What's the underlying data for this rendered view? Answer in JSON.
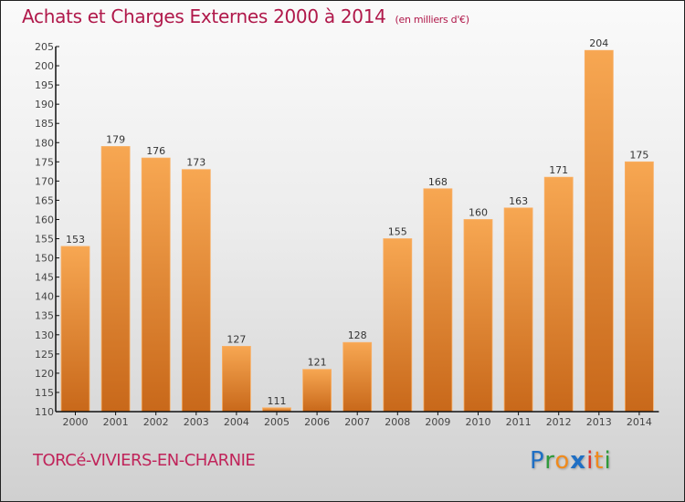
{
  "header": {
    "title": "Achats et Charges Externes 2000 à 2014",
    "unit": "(en milliers d'€)"
  },
  "footer": {
    "town": "TORCé-VIVIERS-EN-CHARNIE",
    "logo": {
      "letters": [
        {
          "ch": "P",
          "color": "#1f6fc4"
        },
        {
          "ch": "r",
          "color": "#2e9a3a"
        },
        {
          "ch": "o",
          "color": "#f08a1c"
        },
        {
          "ch": "x",
          "color": "#1f6fc4"
        },
        {
          "ch": "i",
          "color": "#e0322a"
        },
        {
          "ch": "t",
          "color": "#f08a1c"
        },
        {
          "ch": "i",
          "color": "#2e9a3a"
        }
      ]
    }
  },
  "colors": {
    "bar_top": "#f7a752",
    "bar_bottom": "#c8681a",
    "title": "#b0184a"
  },
  "chart_data": {
    "type": "bar",
    "title": "Achats et Charges Externes 2000 à 2014",
    "subtitle": "(en milliers d'€)",
    "xlabel": "",
    "ylabel": "",
    "categories": [
      "2000",
      "2001",
      "2002",
      "2003",
      "2004",
      "2005",
      "2006",
      "2007",
      "2008",
      "2009",
      "2010",
      "2011",
      "2012",
      "2013",
      "2014"
    ],
    "values": [
      153,
      179,
      176,
      173,
      127,
      111,
      121,
      128,
      155,
      168,
      160,
      163,
      171,
      204,
      175
    ],
    "ylim": [
      110,
      205
    ],
    "yticks": [
      110,
      115,
      120,
      125,
      130,
      135,
      140,
      145,
      150,
      155,
      160,
      165,
      170,
      175,
      180,
      185,
      190,
      195,
      200,
      205
    ],
    "grid": false,
    "legend": "none"
  }
}
